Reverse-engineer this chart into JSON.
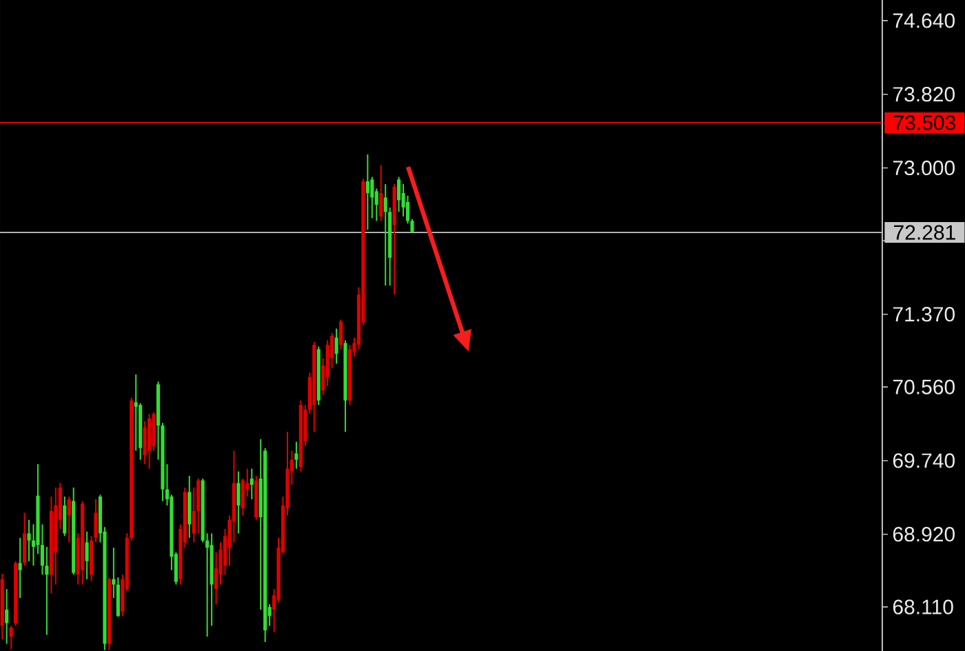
{
  "chart_data": {
    "type": "candlestick",
    "categories": [
      null,
      null,
      null,
      null,
      null,
      null,
      null,
      null,
      null,
      null,
      null,
      null,
      null,
      null,
      null,
      null,
      null,
      null,
      null,
      null,
      null,
      null,
      null,
      null,
      null,
      null,
      null,
      null,
      null,
      null,
      null,
      null,
      null,
      null,
      null,
      null,
      null,
      null,
      null,
      null,
      null,
      null,
      null,
      null,
      null,
      null,
      null,
      null,
      null,
      null,
      null,
      null,
      null,
      null,
      null,
      null,
      null,
      null,
      null,
      null,
      null,
      null,
      null,
      null,
      null,
      null,
      null,
      null,
      null,
      null,
      null,
      null,
      null,
      null,
      null,
      null,
      null,
      null,
      null,
      null,
      null,
      null,
      null,
      null,
      null,
      null,
      null,
      null,
      null,
      null,
      null,
      null,
      null,
      null,
      null,
      null,
      null,
      null,
      null,
      null,
      null,
      null,
      null,
      null,
      null,
      null,
      null,
      null,
      null,
      null,
      null,
      null,
      null,
      null,
      null,
      null,
      null,
      null,
      null,
      null,
      null,
      null,
      null,
      null,
      null,
      null,
      null,
      null,
      null,
      null,
      null,
      null,
      null,
      null,
      null,
      null,
      null,
      null,
      null,
      null,
      null,
      null,
      null,
      null,
      null,
      null,
      null,
      null,
      null,
      null,
      null,
      null,
      null,
      null,
      null,
      null,
      null,
      null,
      null,
      null,
      null,
      null,
      null,
      null,
      null,
      null,
      null,
      null,
      null,
      null,
      null,
      null,
      null,
      null,
      null,
      null,
      null,
      null,
      null,
      null,
      null,
      null,
      null,
      null,
      null,
      null,
      null,
      null,
      null,
      null,
      null,
      null,
      null,
      null,
      null,
      null,
      null,
      null
    ],
    "ohlc": [
      [
        67.9,
        68.48,
        67.75,
        68.42
      ],
      [
        68.08,
        68.31,
        67.7,
        67.93
      ],
      [
        67.78,
        67.9,
        67.64,
        67.88
      ],
      [
        67.93,
        68.62,
        67.9,
        68.6
      ],
      [
        68.6,
        68.88,
        68.21,
        68.52
      ],
      [
        68.6,
        69.16,
        68.57,
        68.93
      ],
      [
        68.93,
        69.08,
        68.62,
        68.85
      ],
      [
        68.85,
        69.03,
        68.57,
        68.78
      ],
      [
        69.35,
        69.7,
        68.7,
        68.8
      ],
      [
        68.8,
        69.03,
        68.47,
        68.57
      ],
      [
        68.57,
        68.78,
        67.8,
        68.47
      ],
      [
        68.47,
        69.34,
        68.26,
        69.18
      ],
      [
        68.72,
        69.44,
        68.36,
        69.24
      ],
      [
        69.08,
        69.49,
        68.98,
        69.44
      ],
      [
        69.24,
        69.34,
        68.9,
        68.93
      ],
      [
        69.13,
        69.34,
        68.83,
        69.31
      ],
      [
        69.29,
        69.44,
        68.47,
        68.49
      ],
      [
        68.47,
        68.93,
        68.36,
        68.88
      ],
      [
        68.52,
        69.29,
        68.36,
        69.26
      ],
      [
        68.83,
        68.95,
        68.42,
        68.62
      ],
      [
        68.47,
        68.9,
        68.4,
        68.85
      ],
      [
        68.88,
        69.31,
        68.83,
        69.16
      ],
      [
        69.34,
        69.36,
        68.83,
        68.93
      ],
      [
        68.95,
        69.0,
        67.63,
        67.7
      ],
      [
        67.7,
        68.44,
        67.63,
        68.42
      ],
      [
        68.42,
        68.77,
        68.21,
        68.36
      ],
      [
        68.36,
        68.44,
        68.0,
        68.01
      ],
      [
        68.06,
        68.47,
        68.01,
        68.42
      ],
      [
        68.31,
        68.93,
        68.29,
        68.88
      ],
      [
        68.88,
        70.44,
        68.85,
        70.41
      ],
      [
        70.39,
        70.7,
        69.85,
        70.34
      ],
      [
        70.36,
        70.38,
        69.75,
        69.88
      ],
      [
        69.8,
        70.18,
        69.7,
        70.11
      ],
      [
        69.85,
        70.26,
        69.65,
        70.21
      ],
      [
        69.9,
        70.28,
        69.85,
        70.26
      ],
      [
        70.59,
        70.62,
        69.75,
        70.13
      ],
      [
        70.13,
        70.16,
        69.29,
        69.42
      ],
      [
        69.42,
        69.7,
        69.24,
        69.31
      ],
      [
        69.34,
        69.36,
        68.52,
        68.67
      ],
      [
        68.7,
        68.72,
        68.36,
        68.39
      ],
      [
        68.42,
        69.03,
        68.36,
        68.98
      ],
      [
        68.83,
        69.44,
        68.77,
        69.39
      ],
      [
        69.39,
        69.57,
        68.88,
        69.03
      ],
      [
        68.93,
        69.44,
        68.83,
        69.18
      ],
      [
        69.18,
        69.54,
        68.93,
        69.52
      ],
      [
        69.52,
        69.54,
        68.83,
        68.85
      ],
      [
        68.85,
        68.93,
        67.78,
        68.77
      ],
      [
        68.8,
        68.93,
        67.9,
        68.36
      ],
      [
        68.31,
        68.72,
        68.14,
        68.54
      ],
      [
        68.47,
        68.83,
        68.36,
        68.75
      ],
      [
        68.57,
        68.98,
        68.47,
        68.9
      ],
      [
        68.77,
        69.13,
        68.57,
        69.08
      ],
      [
        69.06,
        69.85,
        68.83,
        69.49
      ],
      [
        69.49,
        69.62,
        68.93,
        69.24
      ],
      [
        69.21,
        69.54,
        69.13,
        69.52
      ],
      [
        69.42,
        69.65,
        69.34,
        69.49
      ],
      [
        69.54,
        69.65,
        69.31,
        69.47
      ],
      [
        69.11,
        69.57,
        69.08,
        69.52
      ],
      [
        69.54,
        69.98,
        68.08,
        69.11
      ],
      [
        69.85,
        69.88,
        67.72,
        67.85
      ],
      [
        68.11,
        68.14,
        67.9,
        68.01
      ],
      [
        68.08,
        68.31,
        67.83,
        68.24
      ],
      [
        68.19,
        68.88,
        68.16,
        68.77
      ],
      [
        68.72,
        69.34,
        68.7,
        69.24
      ],
      [
        69.21,
        70.06,
        69.13,
        69.65
      ],
      [
        69.62,
        69.85,
        69.47,
        69.75
      ],
      [
        69.82,
        69.95,
        69.65,
        69.75
      ],
      [
        69.67,
        70.41,
        69.62,
        70.36
      ],
      [
        69.95,
        70.36,
        69.9,
        70.31
      ],
      [
        70.31,
        70.72,
        70.26,
        70.67
      ],
      [
        70.36,
        71.06,
        70.06,
        71.03
      ],
      [
        70.98,
        71.01,
        70.36,
        70.41
      ],
      [
        70.52,
        70.88,
        70.47,
        70.8
      ],
      [
        70.67,
        71.08,
        70.57,
        71.03
      ],
      [
        70.88,
        71.16,
        70.77,
        71.13
      ],
      [
        71.11,
        71.21,
        70.82,
        70.93
      ],
      [
        71.03,
        71.31,
        70.98,
        71.29
      ],
      [
        71.05,
        71.08,
        70.06,
        70.41
      ],
      [
        70.41,
        71.03,
        70.36,
        70.98
      ],
      [
        70.95,
        71.11,
        70.9,
        71.05
      ],
      [
        71.03,
        71.67,
        70.98,
        71.59
      ],
      [
        71.28,
        72.88,
        71.25,
        72.85
      ],
      [
        72.85,
        73.15,
        72.31,
        72.72
      ],
      [
        72.87,
        72.9,
        72.44,
        72.67
      ],
      [
        72.74,
        72.77,
        72.41,
        72.59
      ],
      [
        72.46,
        73.03,
        72.41,
        72.72
      ],
      [
        72.67,
        72.82,
        71.69,
        72.51
      ],
      [
        72.51,
        72.56,
        71.69,
        72.0
      ],
      [
        72.36,
        72.82,
        71.59,
        72.79
      ],
      [
        72.87,
        72.9,
        72.51,
        72.64
      ],
      [
        72.72,
        72.82,
        72.46,
        72.56
      ],
      [
        72.62,
        72.69,
        72.38,
        72.41
      ],
      [
        72.41,
        72.43,
        72.28,
        72.29
      ],
      null,
      null,
      null,
      null,
      null,
      null,
      null,
      null,
      null,
      null,
      null,
      null,
      null,
      null,
      null,
      null,
      null,
      null,
      null,
      null,
      null,
      null,
      null,
      null,
      null,
      null,
      null,
      null,
      null,
      null,
      null,
      null,
      null,
      null,
      null,
      null,
      null,
      null,
      null,
      null,
      null,
      null,
      null,
      null,
      null,
      null,
      null,
      null,
      null,
      null,
      null,
      null,
      null,
      null,
      null,
      null,
      null,
      null,
      null,
      null,
      null,
      null,
      null,
      null,
      null,
      null,
      null,
      null,
      null,
      null,
      null,
      null,
      null,
      null,
      null,
      null,
      null,
      null,
      null,
      null,
      null,
      null,
      null,
      null,
      null,
      null,
      null,
      null,
      null,
      null,
      null,
      null,
      null,
      null,
      null,
      null,
      null,
      null,
      null,
      null,
      null,
      null,
      null,
      null,
      null
    ],
    "colors": [
      "#e00000",
      "#33dd33",
      "#e00000",
      "#e00000",
      "#33dd33",
      "#e00000",
      "#33dd33",
      "#33dd33",
      "#33dd33",
      "#33dd33",
      "#33dd33",
      "#e00000",
      "#e00000",
      "#e00000",
      "#33dd33",
      "#e00000",
      "#33dd33",
      "#e00000",
      "#e00000",
      "#33dd33",
      "#e00000",
      "#e00000",
      "#33dd33",
      "#33dd33",
      "#e00000",
      "#33dd33",
      "#33dd33",
      "#e00000",
      "#e00000",
      "#e00000",
      "#33dd33",
      "#33dd33",
      "#e00000",
      "#e00000",
      "#e00000",
      "#33dd33",
      "#33dd33",
      "#33dd33",
      "#33dd33",
      "#33dd33",
      "#e00000",
      "#e00000",
      "#33dd33",
      "#e00000",
      "#e00000",
      "#33dd33",
      "#33dd33",
      "#33dd33",
      "#e00000",
      "#e00000",
      "#e00000",
      "#e00000",
      "#e00000",
      "#33dd33",
      "#e00000",
      "#e00000",
      "#33dd33",
      "#e00000",
      "#33dd33",
      "#33dd33",
      "#33dd33",
      "#e00000",
      "#e00000",
      "#e00000",
      "#e00000",
      "#e00000",
      "#33dd33",
      "#e00000",
      "#e00000",
      "#e00000",
      "#e00000",
      "#33dd33",
      "#e00000",
      "#e00000",
      "#e00000",
      "#33dd33",
      "#e00000",
      "#33dd33",
      "#e00000",
      "#e00000",
      "#e00000",
      "#e00000",
      "#33dd33",
      "#33dd33",
      "#33dd33",
      "#e00000",
      "#33dd33",
      "#33dd33",
      "#e00000",
      "#33dd33",
      "#33dd33",
      "#33dd33",
      "#33dd33",
      null,
      null,
      null,
      null,
      null,
      null,
      null,
      null,
      null,
      null,
      null,
      null,
      null,
      null,
      null,
      null,
      null,
      null,
      null,
      null,
      null,
      null,
      null,
      null,
      null,
      null,
      null,
      null,
      null,
      null,
      null,
      null,
      null,
      null,
      null,
      null,
      null,
      null,
      null,
      null,
      null,
      null,
      null,
      null,
      null,
      null,
      null,
      null,
      null,
      null,
      null,
      null,
      null,
      null,
      null,
      null,
      null,
      null,
      null,
      null,
      null,
      null,
      null,
      null,
      null,
      null,
      null,
      null,
      null,
      null,
      null,
      null,
      null,
      null,
      null,
      null,
      null,
      null,
      null,
      null,
      null,
      null,
      null,
      null,
      null,
      null,
      null,
      null,
      null,
      null,
      null,
      null,
      null,
      null,
      null,
      null,
      null,
      null,
      null,
      null,
      null,
      null,
      null,
      null,
      null
    ],
    "ylim": [
      67.62,
      74.87
    ],
    "yticks": [
      {
        "value": 74.64,
        "label": "74.640"
      },
      {
        "value": 73.82,
        "label": "73.820"
      },
      {
        "value": 73.0,
        "label": "73.000"
      },
      {
        "value": 72.19,
        "label": null
      },
      {
        "value": 71.37,
        "label": "71.370"
      },
      {
        "value": 70.56,
        "label": "70.560"
      },
      {
        "value": 69.74,
        "label": "69.740"
      },
      {
        "value": 68.92,
        "label": "68.920"
      },
      {
        "value": 68.11,
        "label": "68.110"
      }
    ],
    "ref_lines": [
      {
        "axis": "y",
        "value": 73.503,
        "label": "73.503",
        "color": "#ff0000"
      },
      {
        "axis": "y",
        "value": 72.281,
        "label": "72.281",
        "color": "#c8c8c8"
      }
    ],
    "tick_labels": "y"
  }
}
